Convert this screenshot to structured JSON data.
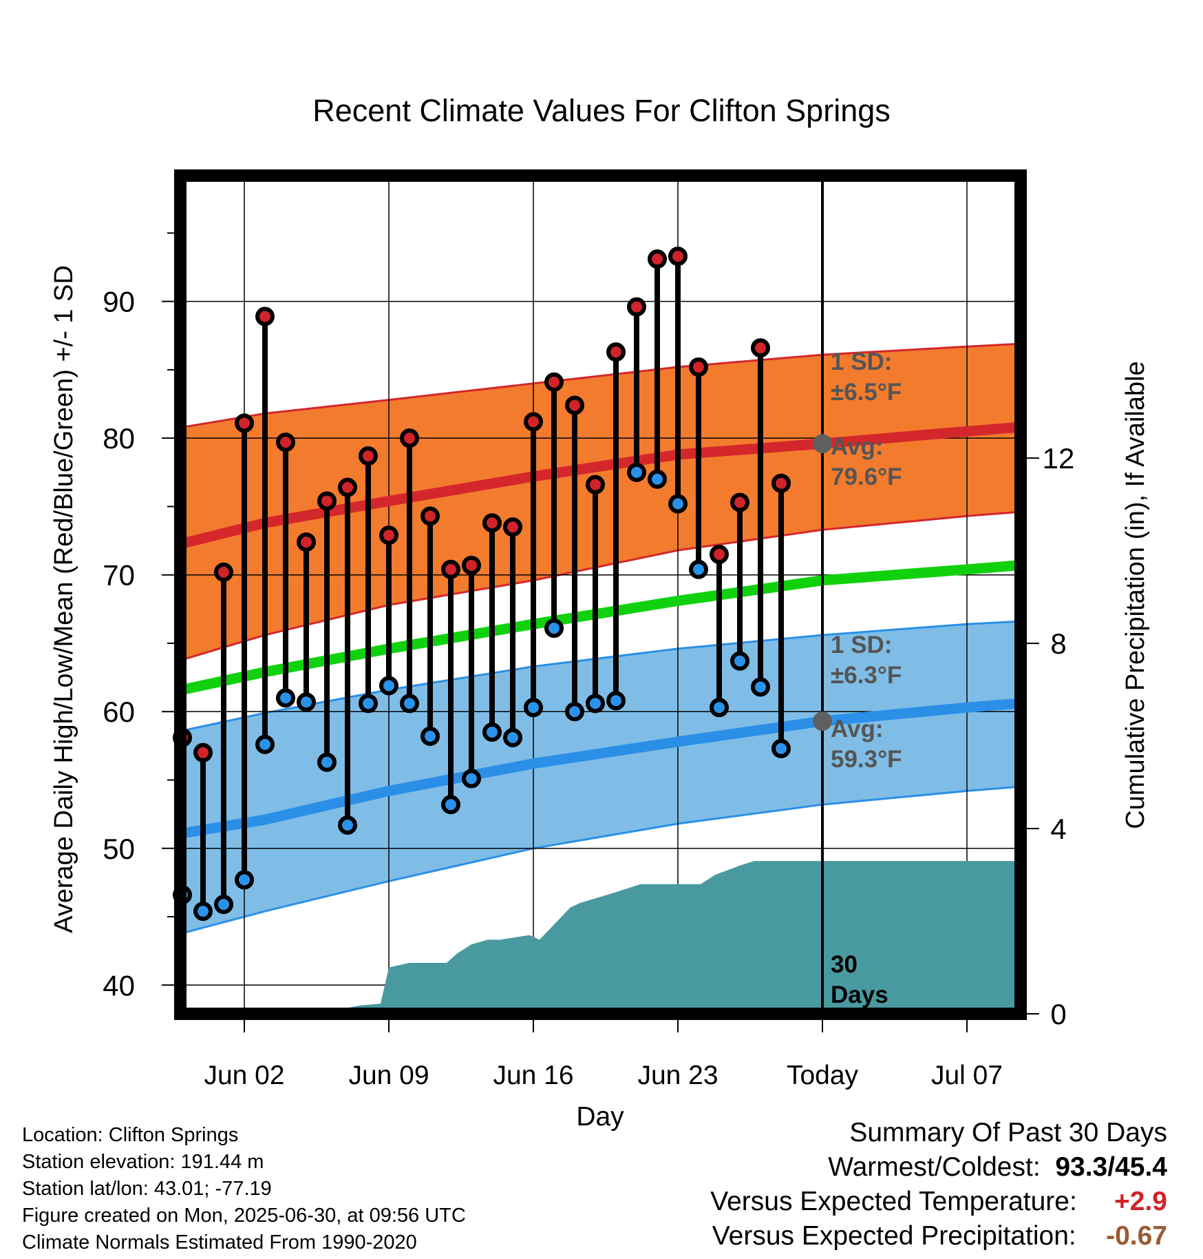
{
  "chart_data": {
    "type": "line",
    "title": "Recent Climate Values For Clifton Springs",
    "xlabel": "Day",
    "ylabel": "Average Daily High/Low/Mean (Red/Blue/Green) +/- 1 SD",
    "y2label": "Cumulative Precipitation (in), If Available",
    "x_ticks": [
      {
        "day": 2,
        "label": "Jun 02"
      },
      {
        "day": 9,
        "label": "Jun 09"
      },
      {
        "day": 16,
        "label": "Jun 16"
      },
      {
        "day": 23,
        "label": "Jun 23"
      },
      {
        "day": 30,
        "label": "Today"
      },
      {
        "day": 37,
        "label": "Jul 07"
      }
    ],
    "xlim": [
      -1.1,
      39.6
    ],
    "ylim": [
      37.9,
      99.2
    ],
    "y_ticks": [
      40,
      50,
      60,
      70,
      80,
      90
    ],
    "y2lim": [
      0,
      18.1
    ],
    "y2_ticks": [
      0,
      4,
      8,
      12
    ],
    "today_day": 30,
    "today_label": "30\nDays",
    "normals": {
      "day": [
        -1,
        3,
        9,
        16,
        23,
        30,
        37,
        39.5
      ],
      "high_avg": [
        72.3,
        73.8,
        75.4,
        77.2,
        78.8,
        79.6,
        80.5,
        80.8
      ],
      "high_upper": [
        80.8,
        81.8,
        82.8,
        84.0,
        85.2,
        86.1,
        86.7,
        86.9
      ],
      "high_lower": [
        63.8,
        65.6,
        67.8,
        69.6,
        71.8,
        73.3,
        74.3,
        74.6
      ],
      "mean_avg": [
        61.6,
        62.9,
        64.6,
        66.4,
        68.1,
        69.6,
        70.4,
        70.7
      ],
      "low_avg": [
        51.1,
        52.1,
        54.2,
        56.2,
        57.8,
        59.3,
        60.3,
        60.6
      ],
      "low_upper": [
        58.6,
        59.9,
        61.6,
        63.3,
        64.6,
        65.6,
        66.4,
        66.6
      ],
      "low_lower": [
        43.8,
        45.4,
        47.6,
        50.0,
        51.8,
        53.2,
        54.2,
        54.5
      ]
    },
    "series": [
      {
        "name": "High",
        "day": [
          -1,
          0,
          1,
          2,
          3,
          4,
          5,
          6,
          7,
          8,
          9,
          10,
          11,
          12,
          13,
          14,
          15,
          16,
          17,
          18,
          19,
          20,
          21,
          22,
          23,
          24,
          25,
          26,
          27,
          28,
          29
        ],
        "values": [
          58.1,
          57.0,
          70.2,
          81.1,
          88.9,
          79.7,
          72.4,
          75.4,
          76.4,
          78.7,
          72.9,
          80.0,
          74.3,
          70.4,
          70.7,
          73.8,
          73.5,
          81.2,
          84.1,
          82.4,
          76.6,
          86.3,
          89.6,
          93.1,
          93.3,
          85.2,
          71.5,
          75.3,
          86.6,
          76.7,
          null
        ]
      },
      {
        "name": "Low",
        "day": [
          -1,
          0,
          1,
          2,
          3,
          4,
          5,
          6,
          7,
          8,
          9,
          10,
          11,
          12,
          13,
          14,
          15,
          16,
          17,
          18,
          19,
          20,
          21,
          22,
          23,
          24,
          25,
          26,
          27,
          28,
          29
        ],
        "values": [
          46.6,
          45.4,
          45.9,
          47.7,
          57.6,
          61.0,
          60.7,
          56.3,
          51.7,
          60.6,
          61.9,
          60.6,
          58.2,
          53.2,
          55.1,
          58.5,
          58.1,
          60.3,
          66.1,
          60.0,
          60.6,
          60.8,
          77.5,
          77.0,
          75.2,
          70.4,
          60.3,
          63.7,
          61.8,
          57.3,
          null
        ]
      },
      {
        "name": "Cumulative Precipitation",
        "day": [
          5.9,
          6.9,
          7.6,
          8.6,
          9.0,
          10.0,
          11.8,
          12.3,
          13.0,
          13.8,
          14.4,
          15.8,
          16.3,
          17.8,
          18.3,
          19.8,
          21.2,
          24.1,
          24.8,
          26.0,
          26.7,
          30.0,
          39.6
        ],
        "values": [
          0,
          0.12,
          0.18,
          0.22,
          1.0,
          1.1,
          1.1,
          1.3,
          1.5,
          1.6,
          1.6,
          1.7,
          1.6,
          2.3,
          2.4,
          2.6,
          2.8,
          2.8,
          3.0,
          3.2,
          3.3,
          3.3,
          3.3
        ]
      }
    ],
    "annotations": {
      "high_sd": "1 SD:\n±6.5°F",
      "high_avg": "Avg:\n79.6°F",
      "low_sd": "1 SD:\n±6.3°F",
      "low_avg": "Avg:\n59.3°F"
    },
    "today_values": {
      "high": 79.6,
      "low": 59.3
    },
    "grid": true,
    "colors": {
      "high_band": "#f37b2e",
      "high_line": "#d4272b",
      "low_band": "#7fbde6",
      "low_line": "#2b8fe8",
      "mean_line": "#11d10f",
      "precip": "#489aa0",
      "high_dot": "#d0232a",
      "low_dot": "#2a92ea",
      "avg_marker": "#5f5f5f",
      "annotation_text": "#555555"
    }
  },
  "info": {
    "location": "Location: Clifton Springs",
    "elevation": "Station elevation: 191.44 m",
    "latlon": "Station lat/lon: 43.01; -77.19",
    "created": "Figure created on Mon, 2025-06-30, at 09:56 UTC",
    "normals": "Climate Normals Estimated From 1990-2020"
  },
  "summary": {
    "heading": "Summary Of Past 30 Days",
    "warm_cold_label": "Warmest/Coldest:",
    "warm_cold_value": "93.3/45.4",
    "temp_label": "Versus Expected Temperature:",
    "temp_value": "+2.9",
    "temp_color": "#d0232a",
    "precip_label": "Versus Expected Precipitation:",
    "precip_value": "-0.67",
    "precip_color": "#9a5a32"
  }
}
